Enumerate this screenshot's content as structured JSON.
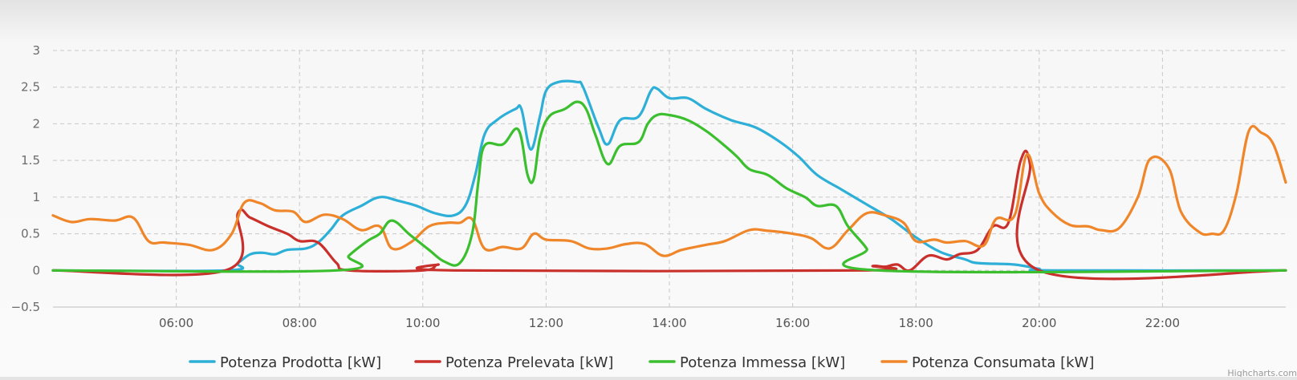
{
  "chart_data": {
    "type": "line",
    "title": "",
    "xlabel": "",
    "ylabel": "",
    "xlim": [
      4.0,
      24.0
    ],
    "ylim": [
      -0.5,
      3
    ],
    "yticks": [
      "3",
      "2.5",
      "2",
      "1.5",
      "1",
      "0.5",
      "0",
      "−0.5"
    ],
    "ytick_values": [
      3,
      2.5,
      2,
      1.5,
      1,
      0.5,
      0,
      -0.5
    ],
    "xticks": [
      "06:00",
      "08:00",
      "10:00",
      "12:00",
      "14:00",
      "16:00",
      "18:00",
      "20:00",
      "22:00"
    ],
    "xtick_values": [
      6,
      8,
      10,
      12,
      14,
      16,
      18,
      20,
      22
    ],
    "grid": true,
    "legend_position": "bottom-center",
    "series": [
      {
        "name": "Potenza Prodotta [kW]",
        "color": "#2eafd8",
        "points": [
          [
            4.0,
            0
          ],
          [
            6.8,
            0
          ],
          [
            7.0,
            0.1
          ],
          [
            7.2,
            0.22
          ],
          [
            7.4,
            0.24
          ],
          [
            7.6,
            0.22
          ],
          [
            7.8,
            0.28
          ],
          [
            8.1,
            0.3
          ],
          [
            8.3,
            0.38
          ],
          [
            8.5,
            0.55
          ],
          [
            8.7,
            0.75
          ],
          [
            9.0,
            0.88
          ],
          [
            9.3,
            1.0
          ],
          [
            9.6,
            0.95
          ],
          [
            9.9,
            0.88
          ],
          [
            10.2,
            0.78
          ],
          [
            10.5,
            0.75
          ],
          [
            10.7,
            0.9
          ],
          [
            10.85,
            1.3
          ],
          [
            11.0,
            1.85
          ],
          [
            11.2,
            2.05
          ],
          [
            11.5,
            2.2
          ],
          [
            11.6,
            2.2
          ],
          [
            11.75,
            1.65
          ],
          [
            11.9,
            2.1
          ],
          [
            12.0,
            2.45
          ],
          [
            12.2,
            2.57
          ],
          [
            12.5,
            2.57
          ],
          [
            12.6,
            2.5
          ],
          [
            12.85,
            1.95
          ],
          [
            13.0,
            1.72
          ],
          [
            13.2,
            2.05
          ],
          [
            13.5,
            2.1
          ],
          [
            13.7,
            2.45
          ],
          [
            13.8,
            2.48
          ],
          [
            14.0,
            2.35
          ],
          [
            14.3,
            2.35
          ],
          [
            14.6,
            2.2
          ],
          [
            15.0,
            2.05
          ],
          [
            15.4,
            1.95
          ],
          [
            15.8,
            1.75
          ],
          [
            16.1,
            1.55
          ],
          [
            16.4,
            1.3
          ],
          [
            16.8,
            1.1
          ],
          [
            17.2,
            0.9
          ],
          [
            17.6,
            0.7
          ],
          [
            18.0,
            0.45
          ],
          [
            18.4,
            0.25
          ],
          [
            18.8,
            0.15
          ],
          [
            19.0,
            0.1
          ],
          [
            19.6,
            0.08
          ],
          [
            20.0,
            0.02
          ],
          [
            20.2,
            0
          ],
          [
            24.0,
            0
          ]
        ]
      },
      {
        "name": "Potenza Prelevata [kW]",
        "color": "#c9302c",
        "points": [
          [
            4.0,
            0
          ],
          [
            6.8,
            0
          ],
          [
            7.0,
            0.78
          ],
          [
            7.2,
            0.72
          ],
          [
            7.5,
            0.6
          ],
          [
            7.8,
            0.5
          ],
          [
            8.0,
            0.4
          ],
          [
            8.3,
            0.38
          ],
          [
            8.6,
            0.1
          ],
          [
            8.8,
            0
          ],
          [
            10.0,
            0
          ],
          [
            10.25,
            0.08
          ],
          [
            10.5,
            0
          ],
          [
            17.1,
            0
          ],
          [
            17.3,
            0.06
          ],
          [
            17.5,
            0.05
          ],
          [
            17.7,
            0.08
          ],
          [
            17.9,
            0
          ],
          [
            18.2,
            0.2
          ],
          [
            18.5,
            0.15
          ],
          [
            18.7,
            0.22
          ],
          [
            19.0,
            0.28
          ],
          [
            19.25,
            0.6
          ],
          [
            19.5,
            0.65
          ],
          [
            19.7,
            1.5
          ],
          [
            19.85,
            1.45
          ],
          [
            20.0,
            0
          ],
          [
            24.0,
            0
          ]
        ]
      },
      {
        "name": "Potenza Immessa [kW]",
        "color": "#3bbf2e",
        "points": [
          [
            4.0,
            0
          ],
          [
            8.6,
            0
          ],
          [
            8.8,
            0.2
          ],
          [
            9.1,
            0.4
          ],
          [
            9.3,
            0.5
          ],
          [
            9.5,
            0.68
          ],
          [
            9.8,
            0.48
          ],
          [
            10.1,
            0.28
          ],
          [
            10.35,
            0.12
          ],
          [
            10.6,
            0.1
          ],
          [
            10.8,
            0.5
          ],
          [
            10.9,
            1.2
          ],
          [
            11.0,
            1.7
          ],
          [
            11.3,
            1.72
          ],
          [
            11.55,
            1.92
          ],
          [
            11.7,
            1.3
          ],
          [
            11.8,
            1.25
          ],
          [
            11.9,
            1.8
          ],
          [
            12.05,
            2.1
          ],
          [
            12.3,
            2.2
          ],
          [
            12.5,
            2.3
          ],
          [
            12.65,
            2.2
          ],
          [
            12.8,
            1.85
          ],
          [
            13.0,
            1.45
          ],
          [
            13.2,
            1.7
          ],
          [
            13.5,
            1.75
          ],
          [
            13.65,
            2.0
          ],
          [
            13.8,
            2.12
          ],
          [
            14.0,
            2.12
          ],
          [
            14.3,
            2.05
          ],
          [
            14.6,
            1.9
          ],
          [
            14.9,
            1.7
          ],
          [
            15.1,
            1.55
          ],
          [
            15.3,
            1.38
          ],
          [
            15.6,
            1.3
          ],
          [
            15.9,
            1.12
          ],
          [
            16.2,
            1.0
          ],
          [
            16.4,
            0.88
          ],
          [
            16.7,
            0.88
          ],
          [
            16.9,
            0.6
          ],
          [
            17.2,
            0.3
          ],
          [
            17.4,
            0
          ],
          [
            24.0,
            0
          ]
        ]
      },
      {
        "name": "Potenza Consumata [kW]",
        "color": "#f0862a",
        "points": [
          [
            4.0,
            0.75
          ],
          [
            4.3,
            0.66
          ],
          [
            4.6,
            0.7
          ],
          [
            5.0,
            0.68
          ],
          [
            5.3,
            0.72
          ],
          [
            5.55,
            0.4
          ],
          [
            5.8,
            0.38
          ],
          [
            6.2,
            0.35
          ],
          [
            6.6,
            0.28
          ],
          [
            6.9,
            0.5
          ],
          [
            7.1,
            0.92
          ],
          [
            7.35,
            0.92
          ],
          [
            7.6,
            0.82
          ],
          [
            7.9,
            0.8
          ],
          [
            8.1,
            0.66
          ],
          [
            8.4,
            0.76
          ],
          [
            8.7,
            0.7
          ],
          [
            9.0,
            0.55
          ],
          [
            9.3,
            0.6
          ],
          [
            9.5,
            0.3
          ],
          [
            9.8,
            0.38
          ],
          [
            10.1,
            0.6
          ],
          [
            10.4,
            0.65
          ],
          [
            10.6,
            0.65
          ],
          [
            10.8,
            0.7
          ],
          [
            11.0,
            0.3
          ],
          [
            11.3,
            0.32
          ],
          [
            11.6,
            0.3
          ],
          [
            11.8,
            0.5
          ],
          [
            12.0,
            0.42
          ],
          [
            12.4,
            0.4
          ],
          [
            12.7,
            0.3
          ],
          [
            13.0,
            0.3
          ],
          [
            13.3,
            0.36
          ],
          [
            13.6,
            0.36
          ],
          [
            13.9,
            0.2
          ],
          [
            14.2,
            0.28
          ],
          [
            14.6,
            0.35
          ],
          [
            14.9,
            0.4
          ],
          [
            15.3,
            0.55
          ],
          [
            15.6,
            0.54
          ],
          [
            16.0,
            0.5
          ],
          [
            16.3,
            0.44
          ],
          [
            16.6,
            0.3
          ],
          [
            16.9,
            0.55
          ],
          [
            17.2,
            0.78
          ],
          [
            17.5,
            0.75
          ],
          [
            17.8,
            0.65
          ],
          [
            18.0,
            0.4
          ],
          [
            18.3,
            0.42
          ],
          [
            18.5,
            0.38
          ],
          [
            18.8,
            0.4
          ],
          [
            19.1,
            0.34
          ],
          [
            19.3,
            0.7
          ],
          [
            19.6,
            0.75
          ],
          [
            19.8,
            1.58
          ],
          [
            20.0,
            1.05
          ],
          [
            20.2,
            0.8
          ],
          [
            20.5,
            0.62
          ],
          [
            20.8,
            0.6
          ],
          [
            21.0,
            0.55
          ],
          [
            21.3,
            0.58
          ],
          [
            21.6,
            1.0
          ],
          [
            21.8,
            1.52
          ],
          [
            22.1,
            1.4
          ],
          [
            22.3,
            0.8
          ],
          [
            22.6,
            0.52
          ],
          [
            22.8,
            0.5
          ],
          [
            23.0,
            0.55
          ],
          [
            23.2,
            1.05
          ],
          [
            23.4,
            1.9
          ],
          [
            23.6,
            1.88
          ],
          [
            23.8,
            1.72
          ],
          [
            24.0,
            1.2
          ]
        ]
      }
    ]
  },
  "credits": "Highcharts.com"
}
